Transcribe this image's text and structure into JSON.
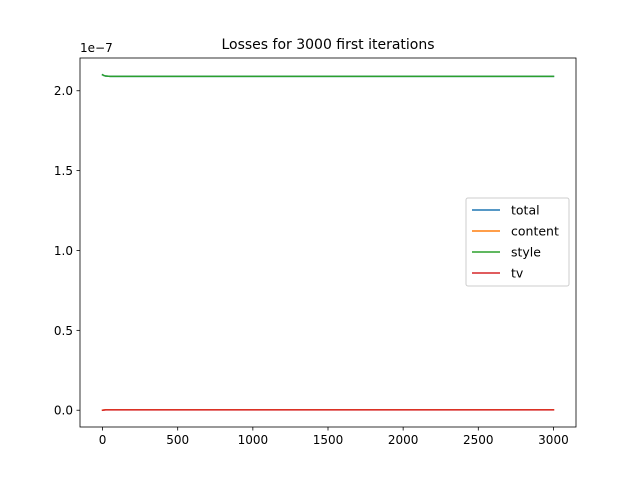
{
  "chart_data": {
    "type": "line",
    "title": "Losses for 3000 first iterations",
    "xlabel": "",
    "ylabel": "",
    "y_offset_label": "1e−7",
    "xlim": [
      -150,
      3150
    ],
    "ylim": [
      -0.105,
      2.205
    ],
    "xticks": [
      0,
      500,
      1000,
      1500,
      2000,
      2500,
      3000
    ],
    "xtick_labels": [
      "0",
      "500",
      "1000",
      "1500",
      "2000",
      "2500",
      "3000"
    ],
    "yticks": [
      0.0,
      0.5,
      1.0,
      1.5,
      2.0
    ],
    "ytick_labels": [
      "0.0",
      "0.5",
      "1.0",
      "1.5",
      "2.0"
    ],
    "grid": false,
    "legend_position": "center-right",
    "series": [
      {
        "name": "total",
        "color": "#1f77b4",
        "x": [
          0,
          10,
          20,
          50,
          100,
          3000
        ],
        "y": [
          2.1,
          2.095,
          2.092,
          2.09,
          2.09,
          2.09
        ]
      },
      {
        "name": "content",
        "color": "#ff7f0e",
        "x": [
          0,
          10,
          20,
          50,
          100,
          3000
        ],
        "y": [
          0.0,
          0.002,
          0.003,
          0.003,
          0.003,
          0.003
        ]
      },
      {
        "name": "style",
        "color": "#2ca02c",
        "x": [
          0,
          10,
          20,
          50,
          100,
          3000
        ],
        "y": [
          2.1,
          2.095,
          2.092,
          2.09,
          2.09,
          2.09
        ]
      },
      {
        "name": "tv",
        "color": "#d62728",
        "x": [
          0,
          10,
          20,
          50,
          100,
          3000
        ],
        "y": [
          0.0,
          0.001,
          0.002,
          0.002,
          0.002,
          0.002
        ]
      }
    ]
  }
}
